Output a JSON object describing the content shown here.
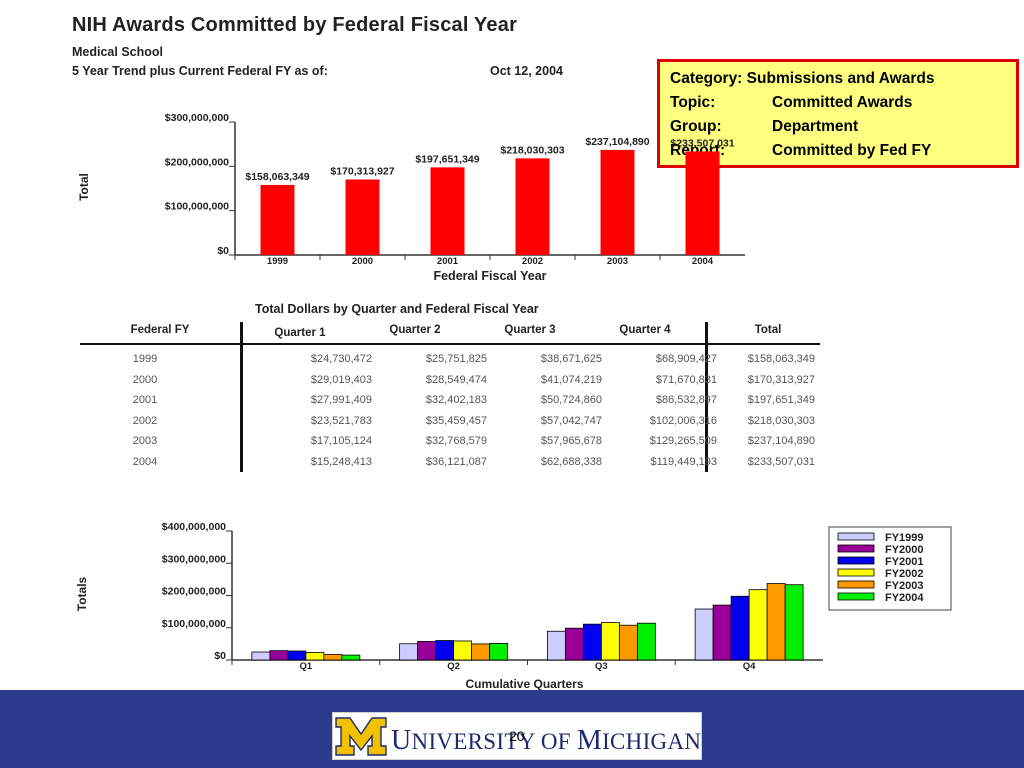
{
  "header": {
    "title": "NIH Awards Committed by Federal Fiscal Year",
    "subtitle": "Medical School",
    "trend_label": "5 Year Trend plus Current Federal FY as of:",
    "as_of_date": "Oct 12, 2004"
  },
  "info_box": {
    "category_label": "Category:",
    "category_value": "Submissions and Awards",
    "topic_label": "Topic:",
    "topic_value": "Committed Awards",
    "group_label": "Group:",
    "group_value": "Department",
    "report_label": "Report:",
    "report_value": "Committed by Fed FY"
  },
  "table": {
    "title": "Total Dollars by Quarter and Federal Fiscal Year",
    "headers": [
      "Federal FY",
      "Quarter 1",
      "Quarter 2",
      "Quarter 3",
      "Quarter 4",
      "Total"
    ],
    "rows": [
      [
        "1999",
        "$24,730,472",
        "$25,751,825",
        "$38,671,625",
        "$68,909,427",
        "$158,063,349"
      ],
      [
        "2000",
        "$29,019,403",
        "$28,549,474",
        "$41,074,219",
        "$71,670,831",
        "$170,313,927"
      ],
      [
        "2001",
        "$27,991,409",
        "$32,402,183",
        "$50,724,860",
        "$86,532,897",
        "$197,651,349"
      ],
      [
        "2002",
        "$23,521,783",
        "$35,459,457",
        "$57,042,747",
        "$102,006,316",
        "$218,030,303"
      ],
      [
        "2003",
        "$17,105,124",
        "$32,768,579",
        "$57,965,678",
        "$129,265,509",
        "$237,104,890"
      ],
      [
        "2004",
        "$15,248,413",
        "$36,121,087",
        "$62,688,338",
        "$119,449,193",
        "$233,507,031"
      ]
    ]
  },
  "chart_data": [
    {
      "type": "bar",
      "xlabel": "Federal Fiscal Year",
      "ylabel": "Total",
      "categories": [
        "1999",
        "2000",
        "2001",
        "2002",
        "2003",
        "2004"
      ],
      "values": [
        158063349,
        170313927,
        197651349,
        218030303,
        237104890,
        233507031
      ],
      "data_labels": [
        "$158,063,349",
        "$170,313,927",
        "$197,651,349",
        "$218,030,303",
        "$237,104,890",
        "$233,507,031"
      ],
      "ylim": [
        0,
        300000000
      ],
      "yticks": [
        0,
        100000000,
        200000000,
        300000000
      ],
      "ytick_labels": [
        "$0",
        "$100,000,000",
        "$200,000,000",
        "$300,000,000"
      ],
      "color": "#ff0000"
    },
    {
      "type": "bar",
      "xlabel": "Cumulative Quarters",
      "ylabel": "Totals",
      "categories": [
        "Q1",
        "Q2",
        "Q3",
        "Q4"
      ],
      "ylim": [
        0,
        400000000
      ],
      "yticks": [
        0,
        100000000,
        200000000,
        300000000,
        400000000
      ],
      "ytick_labels": [
        "$0",
        "$100,000,000",
        "$200,000,000",
        "$300,000,000",
        "$400,000,000"
      ],
      "legend_position": "right",
      "series": [
        {
          "name": "FY1999",
          "color": "#ccccff",
          "values": [
            24730472,
            50482297,
            89153922,
            158063349
          ]
        },
        {
          "name": "FY2000",
          "color": "#990099",
          "values": [
            29019403,
            57568877,
            98643096,
            170313927
          ]
        },
        {
          "name": "FY2001",
          "color": "#0000ee",
          "values": [
            27991409,
            60393592,
            111118452,
            197651349
          ]
        },
        {
          "name": "FY2002",
          "color": "#ffff00",
          "values": [
            23521783,
            58981240,
            116023987,
            218030303
          ]
        },
        {
          "name": "FY2003",
          "color": "#ff9900",
          "values": [
            17105124,
            49873703,
            107839381,
            237104890
          ]
        },
        {
          "name": "FY2004",
          "color": "#00ee00",
          "values": [
            15248413,
            51369500,
            114057838,
            233507031
          ]
        }
      ]
    }
  ],
  "footer": {
    "logo_text_1": "U",
    "logo_text_2": "NIVERSITY ",
    "logo_text_3": "OF ",
    "logo_text_4": "M",
    "logo_text_5": "ICHIGAN",
    "page_number": "20"
  }
}
